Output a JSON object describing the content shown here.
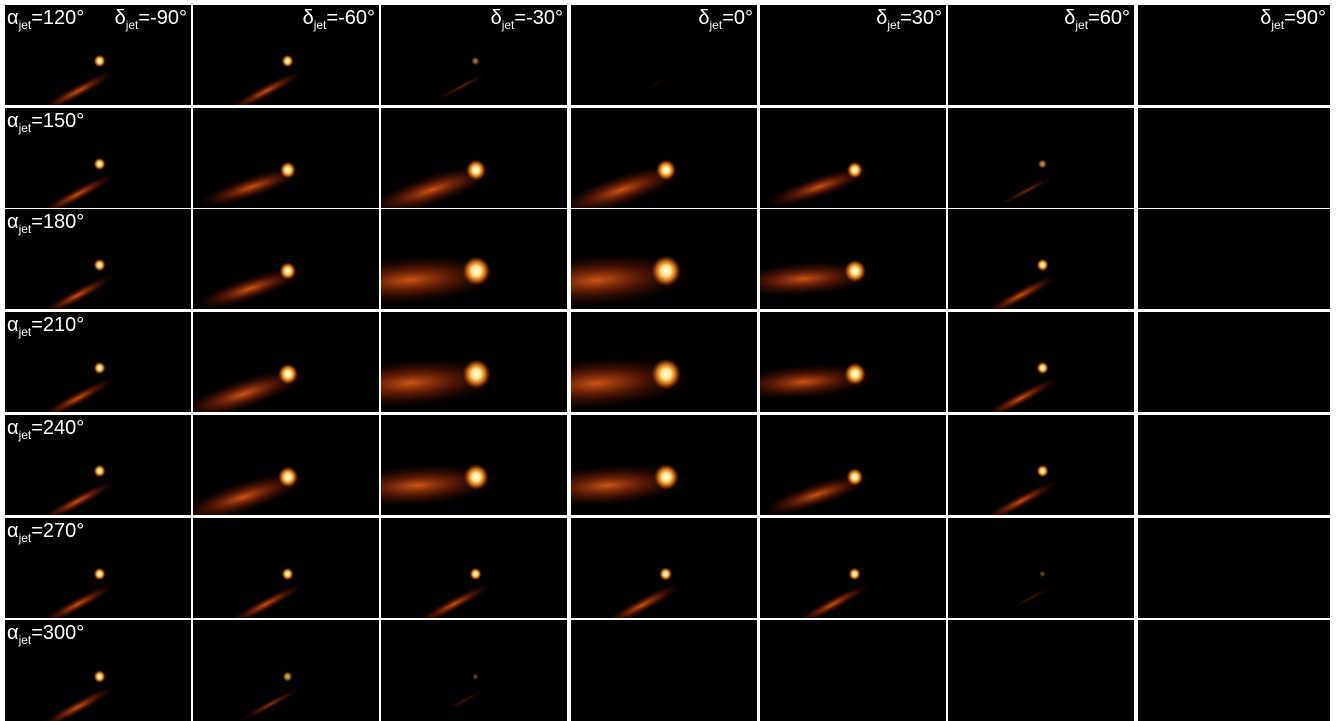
{
  "row_labels": [
    {
      "symbol": "α",
      "subscript": "jet",
      "text": "=120°"
    },
    {
      "symbol": "α",
      "subscript": "jet",
      "text": "=150°"
    },
    {
      "symbol": "α",
      "subscript": "jet",
      "text": "=180°"
    },
    {
      "symbol": "α",
      "subscript": "jet",
      "text": "=210°"
    },
    {
      "symbol": "α",
      "subscript": "jet",
      "text": "=240°"
    },
    {
      "symbol": "α",
      "subscript": "jet",
      "text": "=270°"
    },
    {
      "symbol": "α",
      "subscript": "jet",
      "text": "=300°"
    }
  ],
  "column_labels": [
    {
      "symbol": "δ",
      "subscript": "jet",
      "text": "=-90°"
    },
    {
      "symbol": "δ",
      "subscript": "jet",
      "text": "=-60°"
    },
    {
      "symbol": "δ",
      "subscript": "jet",
      "text": "=-30°"
    },
    {
      "symbol": "δ",
      "subscript": "jet",
      "text": "=0°"
    },
    {
      "symbol": "δ",
      "subscript": "jet",
      "text": "=30°"
    },
    {
      "symbol": "δ",
      "subscript": "jet",
      "text": "=60°"
    },
    {
      "symbol": "δ",
      "subscript": "jet",
      "text": "=90°"
    }
  ]
}
